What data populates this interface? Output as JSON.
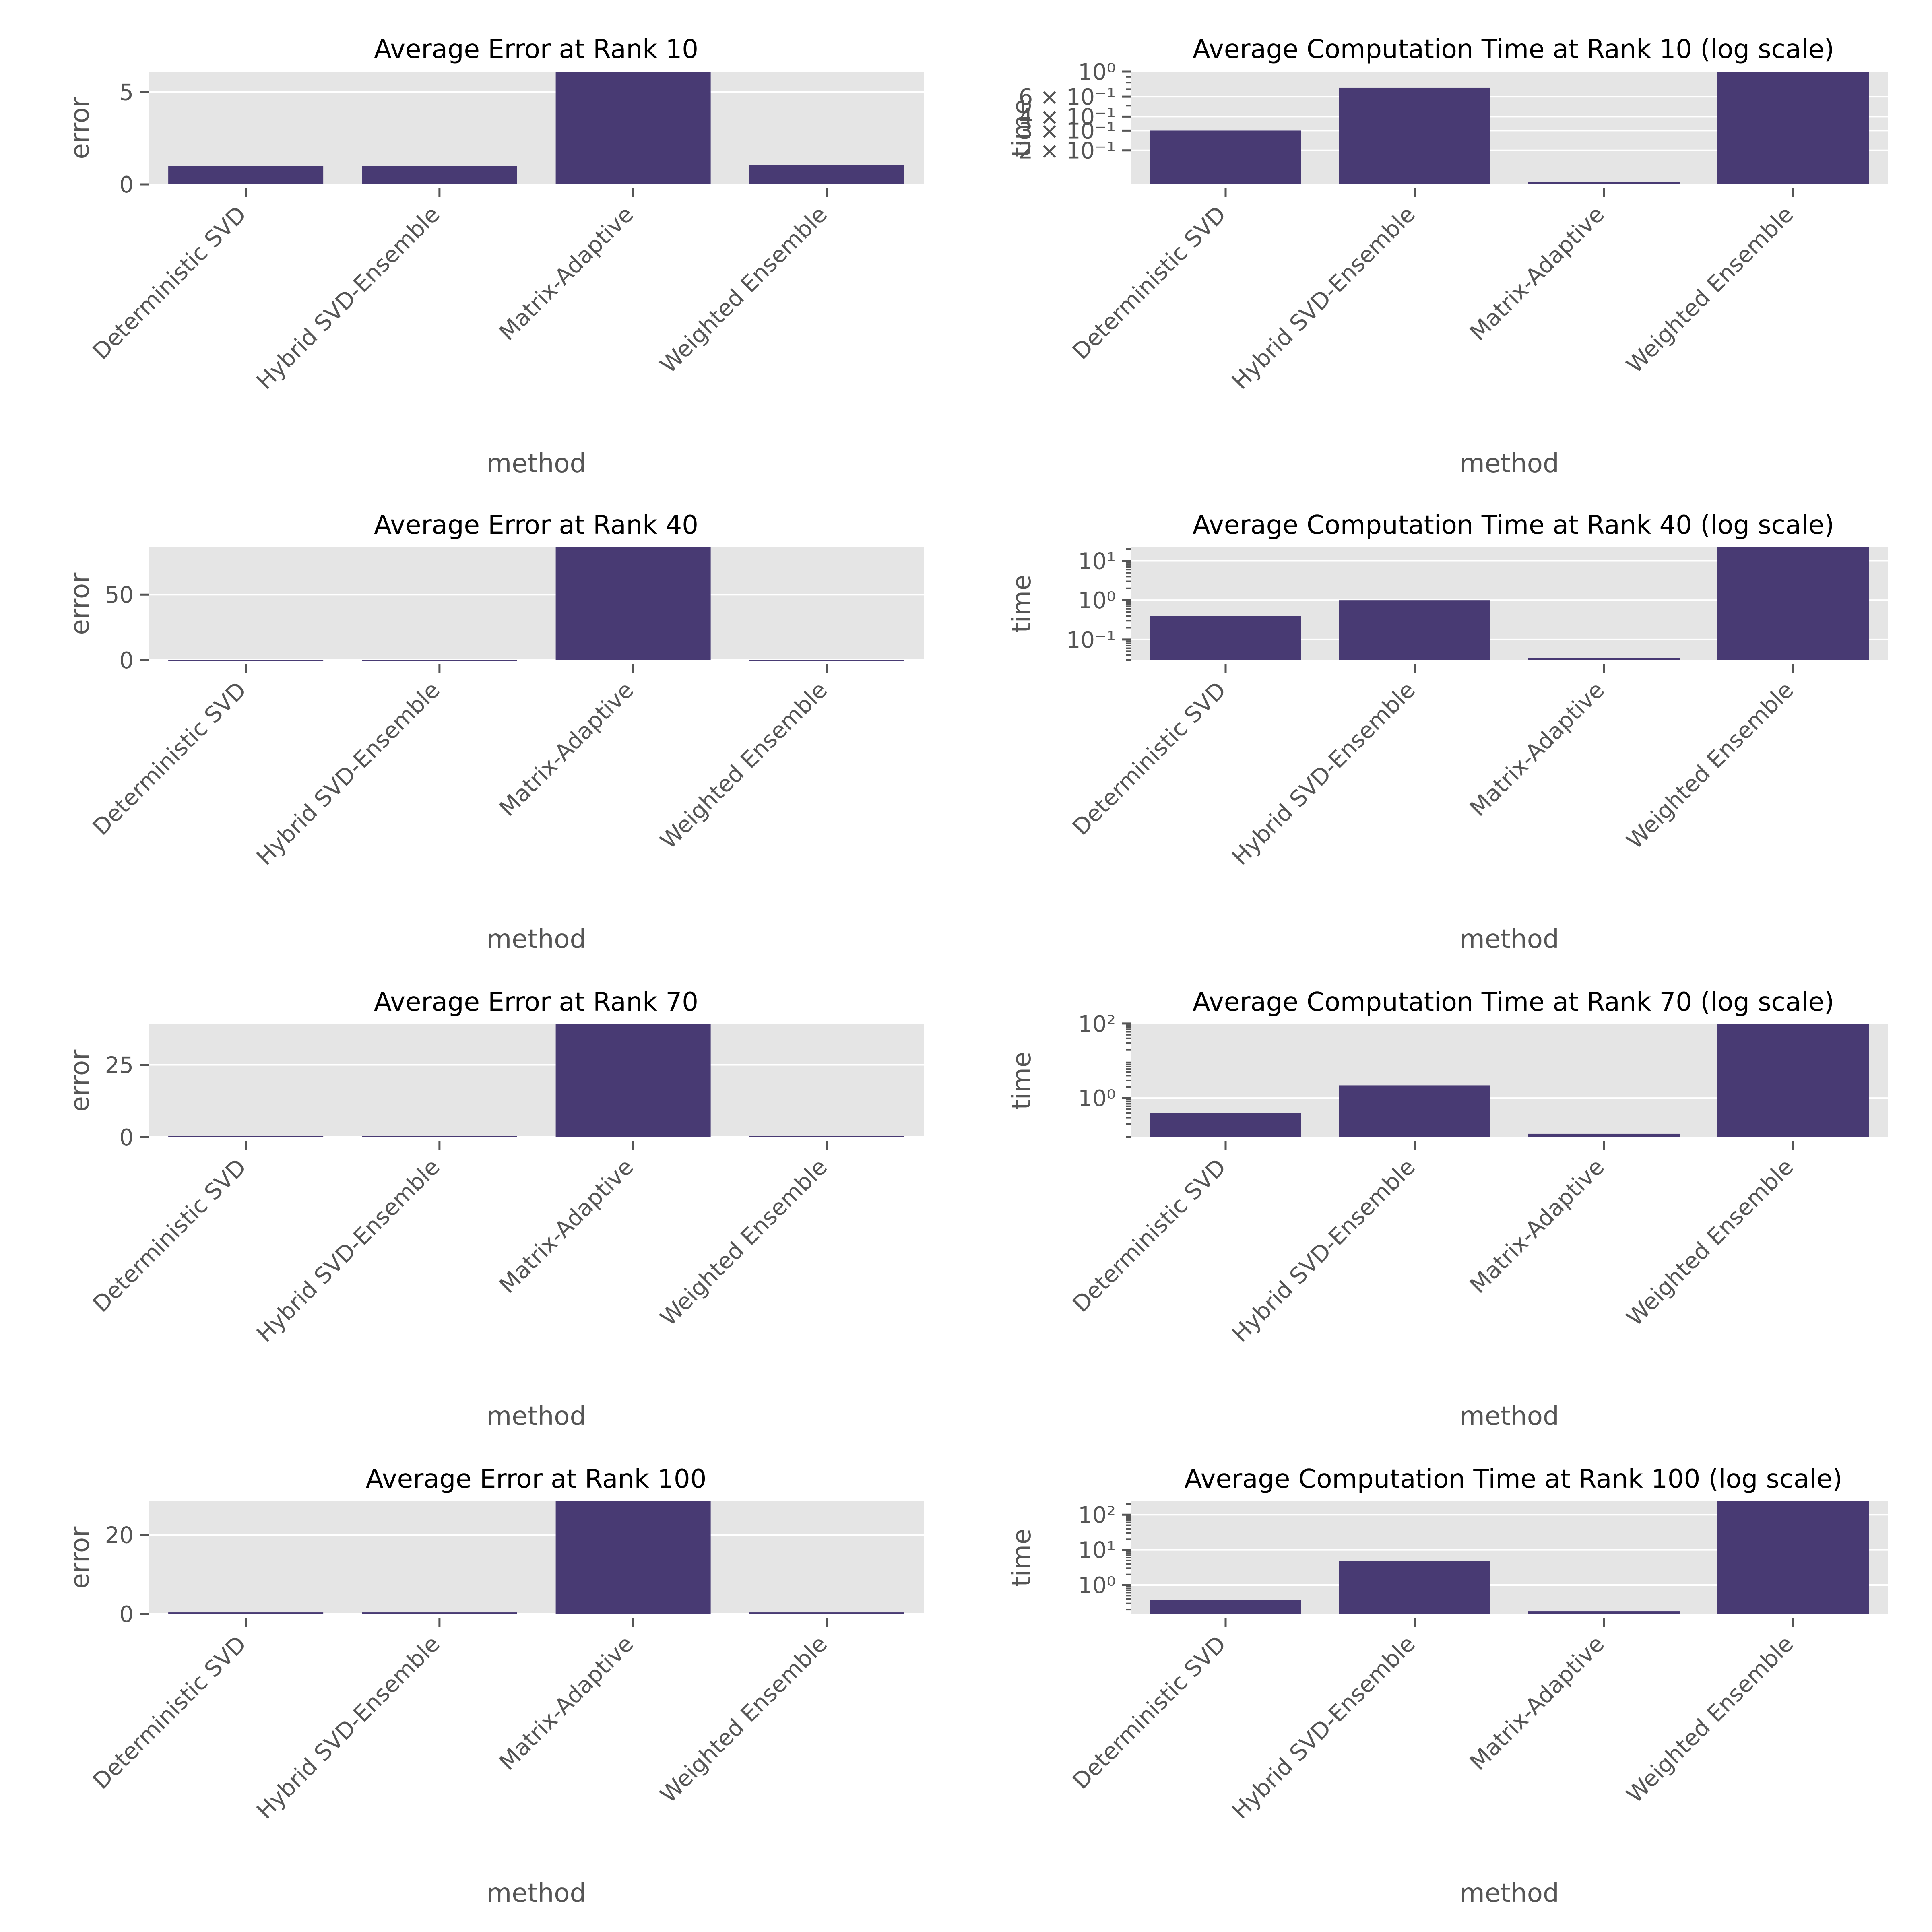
{
  "colors": {
    "bar": "#483a73",
    "panel_bg": "#e5e5e5",
    "grid": "#ffffff",
    "tick_text": "#555555",
    "title_text": "#000000"
  },
  "chart_data": [
    {
      "type": "bar",
      "title": "Average Error at Rank 10",
      "xlabel": "method",
      "ylabel": "error",
      "categories": [
        "Deterministic SVD",
        "Hybrid SVD-Ensemble",
        "Matrix-Adaptive",
        "Weighted Ensemble"
      ],
      "values": [
        1.0,
        1.0,
        6.1,
        1.05
      ],
      "ylim": [
        0,
        6.1
      ],
      "yscale": "linear",
      "yticks": [
        {
          "value": 0,
          "label": "0"
        },
        {
          "value": 5,
          "label": "5"
        }
      ],
      "grid": true
    },
    {
      "type": "bar",
      "title": "Average Computation Time at Rank 10 (log scale)",
      "xlabel": "method",
      "ylabel": "time",
      "categories": [
        "Deterministic SVD",
        "Hybrid SVD-Ensemble",
        "Matrix-Adaptive",
        "Weighted Ensemble"
      ],
      "values": [
        0.3,
        0.72,
        0.105,
        1.0
      ],
      "ylim": [
        0.1,
        1.0
      ],
      "yscale": "log",
      "yticks": [
        {
          "value": 0.2,
          "label": "2 × 10⁻¹"
        },
        {
          "value": 0.3,
          "label": "3 × 10⁻¹"
        },
        {
          "value": 0.4,
          "label": "4 × 10⁻¹"
        },
        {
          "value": 0.6,
          "label": "6 × 10⁻¹"
        },
        {
          "value": 1.0,
          "label": "10⁰"
        }
      ],
      "grid": true
    },
    {
      "type": "bar",
      "title": "Average Error at Rank 40",
      "xlabel": "method",
      "ylabel": "error",
      "categories": [
        "Deterministic SVD",
        "Hybrid SVD-Ensemble",
        "Matrix-Adaptive",
        "Weighted Ensemble"
      ],
      "values": [
        0.05,
        0.05,
        86,
        0.05
      ],
      "ylim": [
        0,
        86
      ],
      "yscale": "linear",
      "yticks": [
        {
          "value": 0,
          "label": "0"
        },
        {
          "value": 50,
          "label": "50"
        }
      ],
      "grid": true
    },
    {
      "type": "bar",
      "title": "Average Computation Time at Rank 40 (log scale)",
      "xlabel": "method",
      "ylabel": "time",
      "categories": [
        "Deterministic SVD",
        "Hybrid SVD-Ensemble",
        "Matrix-Adaptive",
        "Weighted Ensemble"
      ],
      "values": [
        0.4,
        1.0,
        0.034,
        22
      ],
      "ylim": [
        0.03,
        22
      ],
      "yscale": "log",
      "yticks": [
        {
          "value": 0.1,
          "label": "10⁻¹"
        },
        {
          "value": 1,
          "label": "10⁰"
        },
        {
          "value": 10,
          "label": "10¹"
        }
      ],
      "grid": true
    },
    {
      "type": "bar",
      "title": "Average Error at Rank 70",
      "xlabel": "method",
      "ylabel": "error",
      "categories": [
        "Deterministic SVD",
        "Hybrid SVD-Ensemble",
        "Matrix-Adaptive",
        "Weighted Ensemble"
      ],
      "values": [
        0.4,
        0.4,
        39,
        0.4
      ],
      "ylim": [
        0,
        39
      ],
      "yscale": "linear",
      "yticks": [
        {
          "value": 0,
          "label": "0"
        },
        {
          "value": 25,
          "label": "25"
        }
      ],
      "grid": true
    },
    {
      "type": "bar",
      "title": "Average Computation Time at Rank 70 (log scale)",
      "xlabel": "method",
      "ylabel": "time",
      "categories": [
        "Deterministic SVD",
        "Hybrid SVD-Ensemble",
        "Matrix-Adaptive",
        "Weighted Ensemble"
      ],
      "values": [
        0.4,
        2.2,
        0.11,
        95
      ],
      "ylim": [
        0.09,
        95
      ],
      "yscale": "log",
      "yticks": [
        {
          "value": 1,
          "label": "10⁰"
        },
        {
          "value": 100,
          "label": "10²"
        }
      ],
      "grid": true
    },
    {
      "type": "bar",
      "title": "Average Error at Rank 100",
      "xlabel": "method",
      "ylabel": "error",
      "categories": [
        "Deterministic SVD",
        "Hybrid SVD-Ensemble",
        "Matrix-Adaptive",
        "Weighted Ensemble"
      ],
      "values": [
        0.4,
        0.4,
        28.5,
        0.4
      ],
      "ylim": [
        0,
        28.5
      ],
      "yscale": "linear",
      "yticks": [
        {
          "value": 0,
          "label": "0"
        },
        {
          "value": 20,
          "label": "20"
        }
      ],
      "grid": true
    },
    {
      "type": "bar",
      "title": "Average Computation Time at Rank 100 (log scale)",
      "xlabel": "method",
      "ylabel": "time",
      "categories": [
        "Deterministic SVD",
        "Hybrid SVD-Ensemble",
        "Matrix-Adaptive",
        "Weighted Ensemble"
      ],
      "values": [
        0.38,
        4.8,
        0.18,
        240
      ],
      "ylim": [
        0.15,
        240
      ],
      "yscale": "log",
      "yticks": [
        {
          "value": 1,
          "label": "10⁰"
        },
        {
          "value": 10,
          "label": "10¹"
        },
        {
          "value": 100,
          "label": "10²"
        }
      ],
      "grid": true
    }
  ]
}
